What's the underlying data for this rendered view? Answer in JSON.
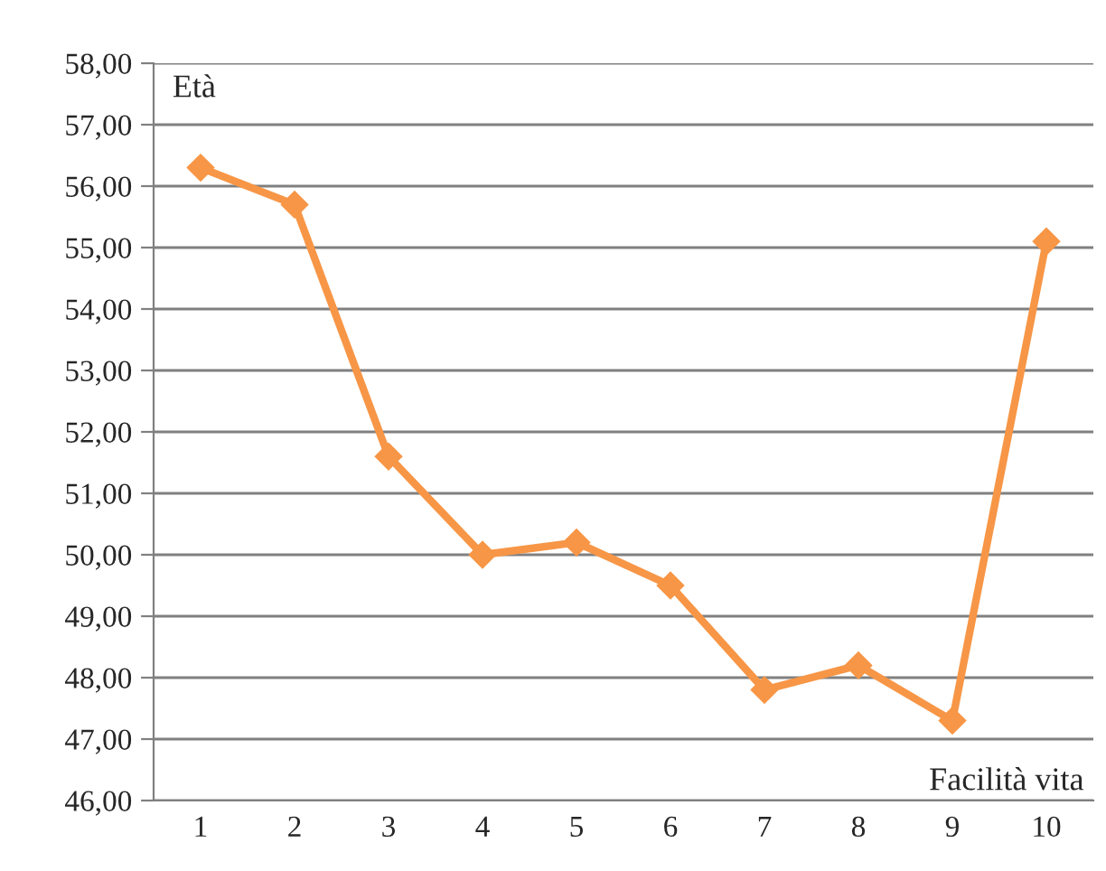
{
  "chart_data": {
    "type": "line",
    "xlabel": "Facilità vita",
    "ylabel": "Età",
    "categories": [
      "1",
      "2",
      "3",
      "4",
      "5",
      "6",
      "7",
      "8",
      "9",
      "10"
    ],
    "series": [
      {
        "color": "#f79646",
        "values": [
          56.3,
          55.7,
          51.6,
          50.0,
          50.2,
          49.5,
          47.8,
          48.2,
          47.3,
          55.1
        ]
      }
    ],
    "ylim": [
      46,
      58
    ],
    "yticks": [
      {
        "value": 46,
        "label": "46,00"
      },
      {
        "value": 47,
        "label": "47,00"
      },
      {
        "value": 48,
        "label": "48,00"
      },
      {
        "value": 49,
        "label": "49,00"
      },
      {
        "value": 50,
        "label": "50,00"
      },
      {
        "value": 51,
        "label": "51,00"
      },
      {
        "value": 52,
        "label": "52,00"
      },
      {
        "value": 53,
        "label": "53,00"
      },
      {
        "value": 54,
        "label": "54,00"
      },
      {
        "value": 55,
        "label": "55,00"
      },
      {
        "value": 56,
        "label": "56,00"
      },
      {
        "value": 57,
        "label": "57,00"
      },
      {
        "value": 58,
        "label": "58,00"
      }
    ],
    "grid": "y",
    "marker": "diamond",
    "line_style": "solid",
    "legend": false
  }
}
